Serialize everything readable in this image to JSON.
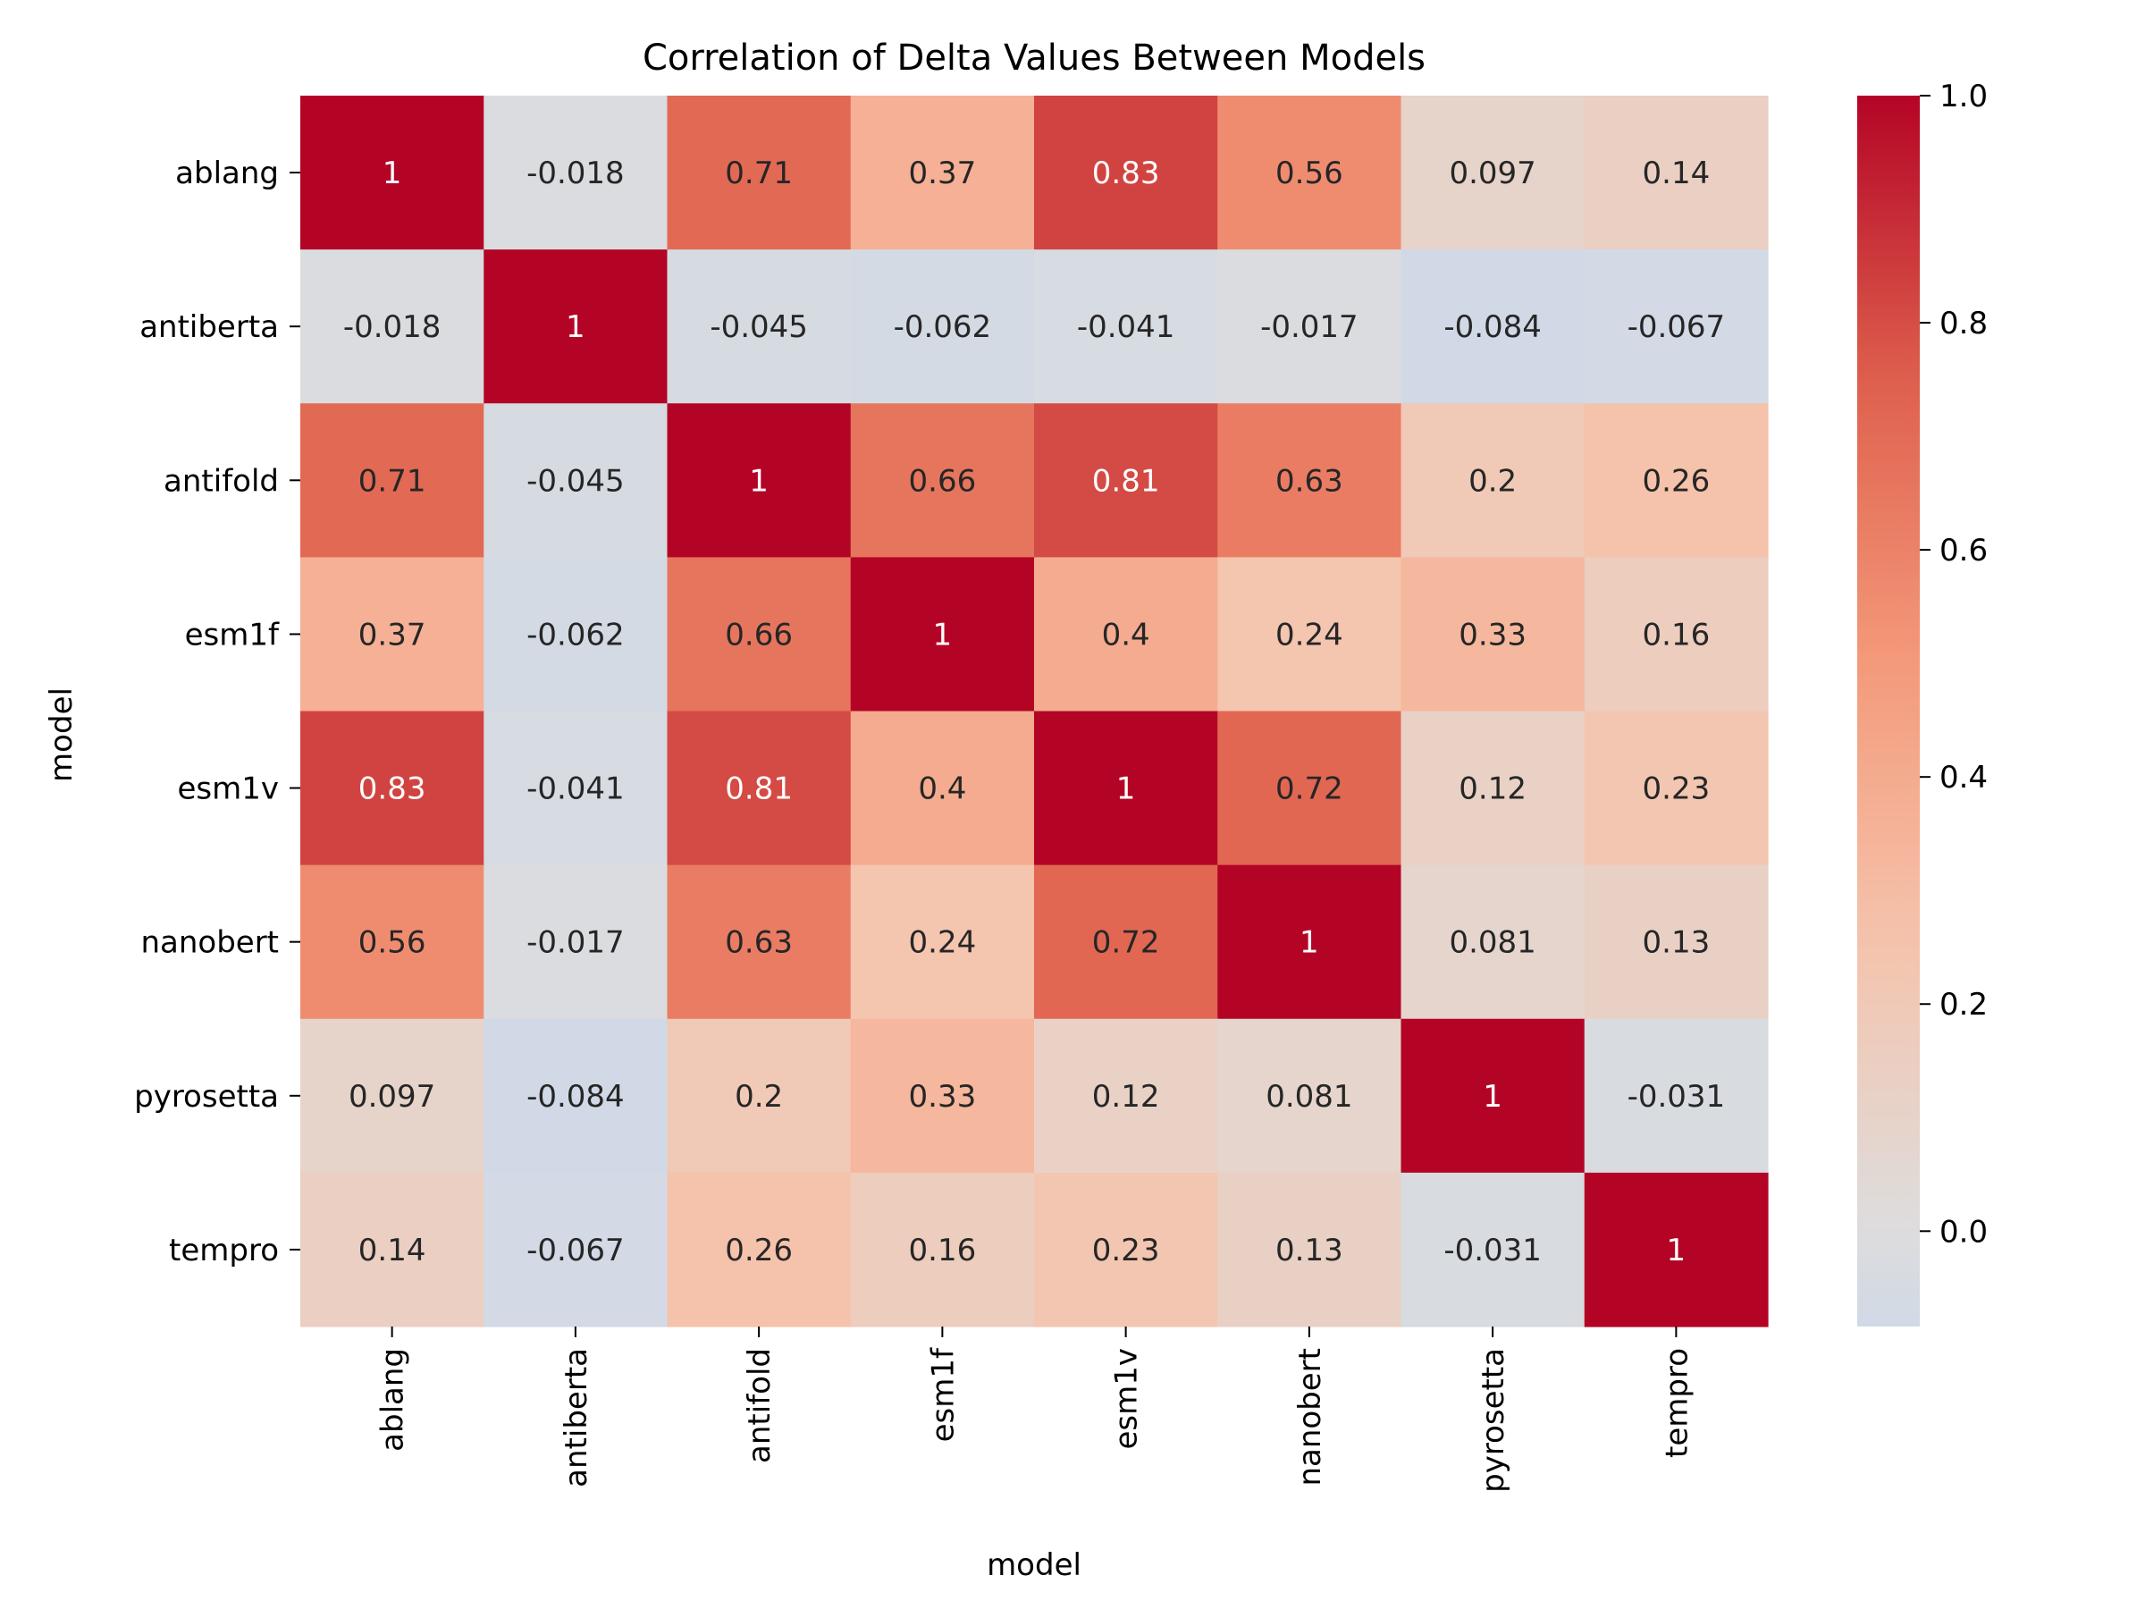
{
  "chart_data": {
    "type": "heatmap",
    "title": "Correlation of Delta Values Between Models",
    "xlabel": "model",
    "ylabel": "model",
    "x_categories": [
      "ablang",
      "antiberta",
      "antifold",
      "esm1f",
      "esm1v",
      "nanobert",
      "pyrosetta",
      "tempro"
    ],
    "y_categories": [
      "ablang",
      "antiberta",
      "antifold",
      "esm1f",
      "esm1v",
      "nanobert",
      "pyrosetta",
      "tempro"
    ],
    "values": [
      [
        1,
        -0.018,
        0.71,
        0.37,
        0.83,
        0.56,
        0.097,
        0.14
      ],
      [
        -0.018,
        1,
        -0.045,
        -0.062,
        -0.041,
        -0.017,
        -0.084,
        -0.067
      ],
      [
        0.71,
        -0.045,
        1,
        0.66,
        0.81,
        0.63,
        0.2,
        0.26
      ],
      [
        0.37,
        -0.062,
        0.66,
        1,
        0.4,
        0.24,
        0.33,
        0.16
      ],
      [
        0.83,
        -0.041,
        0.81,
        0.4,
        1,
        0.72,
        0.12,
        0.23
      ],
      [
        0.56,
        -0.017,
        0.63,
        0.24,
        0.72,
        1,
        0.081,
        0.13
      ],
      [
        0.097,
        -0.084,
        0.2,
        0.33,
        0.12,
        0.081,
        1,
        -0.031
      ],
      [
        0.14,
        -0.067,
        0.26,
        0.16,
        0.23,
        0.13,
        -0.031,
        1
      ]
    ],
    "colormap": "coolwarm",
    "color_center": 0,
    "colorbar": {
      "range": [
        -0.084,
        1.0
      ],
      "ticks": [
        0.0,
        0.2,
        0.4,
        0.6,
        0.8,
        1.0
      ],
      "tick_labels": [
        "0.0",
        "0.2",
        "0.4",
        "0.6",
        "0.8",
        "1.0"
      ]
    },
    "annotations": true,
    "grid": false,
    "legend": "colorbar-right"
  }
}
